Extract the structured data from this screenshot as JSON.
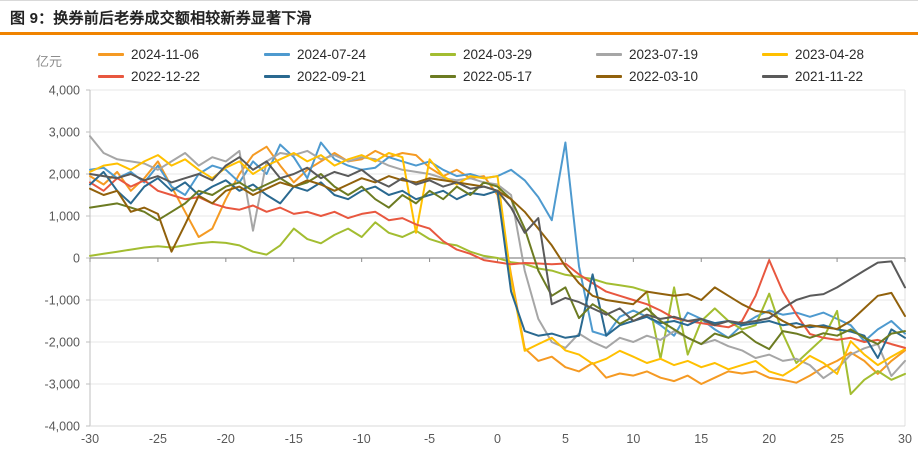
{
  "header": {
    "title": "图 9：换券前后老券成交额相较新券显著下滑",
    "accent_color": "#f08300"
  },
  "chart_data": {
    "type": "line",
    "title": "图 9：换券前后老券成交额相较新券显著下滑",
    "ylabel": "亿元",
    "xlabel": "",
    "xlim": [
      -30,
      30
    ],
    "ylim": [
      -4000,
      4000
    ],
    "x_ticks": [
      -30,
      -25,
      -20,
      -15,
      -10,
      -5,
      0,
      5,
      10,
      15,
      20,
      25,
      30
    ],
    "y_ticks": [
      4000,
      3000,
      2000,
      1000,
      0,
      -1000,
      -2000,
      -3000,
      -4000
    ],
    "grid": true,
    "legend_position": "top",
    "x": [
      -30,
      -29,
      -28,
      -27,
      -26,
      -25,
      -24,
      -23,
      -22,
      -21,
      -20,
      -19,
      -18,
      -17,
      -16,
      -15,
      -14,
      -13,
      -12,
      -11,
      -10,
      -9,
      -8,
      -7,
      -6,
      -5,
      -4,
      -3,
      -2,
      -1,
      0,
      1,
      2,
      3,
      4,
      5,
      6,
      7,
      8,
      9,
      10,
      11,
      12,
      13,
      14,
      15,
      16,
      17,
      18,
      19,
      20,
      21,
      22,
      23,
      24,
      25,
      26,
      27,
      28,
      29,
      30
    ],
    "series": [
      {
        "name": "2024-11-06",
        "color": "#F59A23",
        "values": [
          1950,
          1750,
          2050,
          1600,
          1900,
          2300,
          1700,
          1100,
          500,
          700,
          1400,
          2000,
          2450,
          2650,
          2200,
          1800,
          2100,
          2300,
          2500,
          2300,
          2350,
          2550,
          2400,
          2500,
          2450,
          2150,
          1950,
          2100,
          1900,
          1950,
          1500,
          -400,
          -2150,
          -2450,
          -2350,
          -2600,
          -2700,
          -2500,
          -2850,
          -2750,
          -2800,
          -2700,
          -2850,
          -2930,
          -2800,
          -3000,
          -2850,
          -2700,
          -2750,
          -2700,
          -2850,
          -2900,
          -2970,
          -2800,
          -2600,
          -2450,
          -2250,
          -2450,
          -2760,
          -2450,
          -2200
        ]
      },
      {
        "name": "2024-07-24",
        "color": "#4E9ACF",
        "values": [
          2100,
          2150,
          1900,
          2050,
          1800,
          2200,
          1700,
          1500,
          2000,
          2200,
          2100,
          1800,
          2300,
          2000,
          2700,
          2400,
          1900,
          2750,
          2350,
          2200,
          2100,
          2150,
          2400,
          2300,
          2200,
          2300,
          2100,
          1950,
          2000,
          1900,
          1950,
          2100,
          1850,
          1450,
          900,
          2750,
          -200,
          -1750,
          -1850,
          -1400,
          -1250,
          -1400,
          -1600,
          -1850,
          -1300,
          -1450,
          -1700,
          -1900,
          -1600,
          -1400,
          -1250,
          -1350,
          -1300,
          -1400,
          -1300,
          -1450,
          -1600,
          -1980,
          -1700,
          -1500,
          -1800
        ]
      },
      {
        "name": "2024-03-29",
        "color": "#A3BD31",
        "values": [
          50,
          100,
          150,
          200,
          250,
          280,
          250,
          300,
          350,
          380,
          360,
          300,
          150,
          80,
          300,
          700,
          450,
          350,
          550,
          700,
          500,
          850,
          600,
          500,
          650,
          450,
          350,
          300,
          150,
          50,
          0,
          -100,
          -140,
          -250,
          -300,
          -400,
          -450,
          -500,
          -600,
          -650,
          -700,
          -800,
          -2400,
          -700,
          -2300,
          -1500,
          -1200,
          -1500,
          -1700,
          -1600,
          -850,
          -1800,
          -2500,
          -2200,
          -1900,
          -1260,
          -3240,
          -2900,
          -2690,
          -2900,
          -2760
        ]
      },
      {
        "name": "2023-07-19",
        "color": "#A6A6A6",
        "values": [
          2900,
          2500,
          2350,
          2300,
          2250,
          2100,
          2300,
          2500,
          2200,
          2400,
          2300,
          2550,
          650,
          2300,
          2500,
          2450,
          2550,
          2350,
          2450,
          2300,
          2400,
          2350,
          2200,
          2100,
          2050,
          2000,
          1900,
          1850,
          1900,
          1800,
          1750,
          1500,
          -300,
          -1450,
          -2000,
          -2140,
          -1800,
          -2000,
          -2140,
          -1900,
          -2000,
          -1850,
          -1950,
          -1740,
          -1900,
          -2050,
          -1950,
          -2100,
          -2200,
          -2380,
          -2300,
          -2450,
          -2400,
          -2550,
          -2860,
          -2640,
          -2300,
          -2150,
          -2050,
          -2810,
          -2450
        ]
      },
      {
        "name": "2023-04-28",
        "color": "#FFC000",
        "values": [
          2050,
          2200,
          2250,
          2100,
          2300,
          2450,
          2200,
          2350,
          2100,
          1900,
          2150,
          2300,
          2000,
          2200,
          2350,
          2500,
          2300,
          2450,
          2200,
          2350,
          2450,
          2300,
          2500,
          2400,
          600,
          2350,
          1950,
          1750,
          1950,
          1900,
          1950,
          -500,
          -2210,
          -2050,
          -1900,
          -2200,
          -2300,
          -2520,
          -2400,
          -2210,
          -2350,
          -2500,
          -2400,
          -2550,
          -2450,
          -2600,
          -2500,
          -2650,
          -2550,
          -2450,
          -2700,
          -2800,
          -2600,
          -2330,
          -2500,
          -2760,
          -1980,
          -2300,
          -2550,
          -2350,
          -2170
        ]
      },
      {
        "name": "2022-12-22",
        "color": "#E8573F",
        "values": [
          1800,
          1600,
          1900,
          1700,
          1850,
          1600,
          1500,
          1400,
          1450,
          1300,
          1200,
          1150,
          1250,
          1100,
          1200,
          1050,
          1100,
          1000,
          1100,
          950,
          1050,
          1100,
          900,
          950,
          800,
          700,
          400,
          200,
          100,
          -50,
          -100,
          -150,
          -120,
          -130,
          -150,
          -130,
          -390,
          -600,
          -800,
          -900,
          -1000,
          -1100,
          -1250,
          -1430,
          -1500,
          -1550,
          -1600,
          -1650,
          -1500,
          -900,
          -50,
          -800,
          -1340,
          -1810,
          -1900,
          -1950,
          -1900,
          -2000,
          -1950,
          -2050,
          -2140
        ]
      },
      {
        "name": "2022-09-21",
        "color": "#2A6990",
        "values": [
          1750,
          2050,
          1600,
          1300,
          1700,
          1900,
          1600,
          1800,
          1500,
          1700,
          1850,
          1600,
          1750,
          1500,
          1300,
          1700,
          1600,
          1800,
          1500,
          1400,
          1600,
          1700,
          1500,
          1600,
          1400,
          1500,
          1600,
          1400,
          1550,
          1500,
          1600,
          -800,
          -1740,
          -1850,
          -1800,
          -1900,
          -1850,
          -390,
          -1850,
          -1600,
          -1500,
          -1400,
          -1550,
          -1500,
          -1600,
          -1450,
          -1550,
          -1500,
          -1600,
          -1550,
          -1500,
          -1600,
          -1550,
          -1650,
          -1600,
          -1700,
          -1750,
          -1850,
          -2380,
          -1700,
          -1900
        ]
      },
      {
        "name": "2022-05-17",
        "color": "#6C7B22",
        "values": [
          1200,
          1250,
          1300,
          1200,
          1100,
          900,
          1100,
          1300,
          1600,
          1500,
          1700,
          1800,
          1600,
          1750,
          1900,
          1700,
          1800,
          2000,
          1700,
          1500,
          1700,
          1400,
          1200,
          1500,
          1300,
          1600,
          1400,
          1700,
          1500,
          1800,
          1700,
          1400,
          700,
          -300,
          -900,
          -700,
          -1430,
          -1100,
          -1300,
          -1570,
          -1400,
          -1200,
          -1500,
          -1700,
          -1900,
          -2050,
          -1800,
          -1900,
          -1750,
          -2000,
          -2170,
          -1740,
          -1800,
          -1900,
          -1790,
          -1850,
          -1700,
          -1900,
          -2050,
          -1800,
          -1740
        ]
      },
      {
        "name": "2022-03-10",
        "color": "#91610C",
        "values": [
          1650,
          1500,
          1600,
          1100,
          1200,
          1050,
          150,
          800,
          1480,
          1300,
          1600,
          1700,
          1500,
          1650,
          1800,
          1700,
          1850,
          1750,
          1600,
          1750,
          1900,
          1800,
          1950,
          1850,
          1800,
          1900,
          1850,
          1800,
          1750,
          1700,
          1600,
          1400,
          1100,
          700,
          300,
          -200,
          -600,
          -900,
          -1000,
          -1050,
          -1100,
          -800,
          -850,
          -900,
          -860,
          -1000,
          -700,
          -900,
          -1100,
          -1260,
          -1300,
          -1500,
          -1660,
          -1600,
          -1650,
          -1690,
          -1500,
          -1200,
          -900,
          -830,
          -1380
        ]
      },
      {
        "name": "2021-11-22",
        "color": "#5A5A5A",
        "values": [
          2000,
          1950,
          1900,
          2000,
          1850,
          1950,
          1800,
          1900,
          2000,
          1850,
          2200,
          2400,
          2100,
          2300,
          1900,
          2000,
          2150,
          1900,
          2050,
          1950,
          2100,
          1850,
          1700,
          1900,
          1750,
          1850,
          1700,
          1800,
          1650,
          1700,
          1600,
          1200,
          600,
          950,
          -1100,
          -950,
          -1050,
          -1200,
          -1350,
          -1200,
          -1500,
          -1350,
          -1450,
          -1400,
          -1500,
          -1450,
          -1600,
          -1500,
          -1550,
          -1500,
          -1430,
          -1200,
          -1000,
          -900,
          -860,
          -700,
          -500,
          -300,
          -110,
          -80,
          -700
        ]
      }
    ]
  }
}
